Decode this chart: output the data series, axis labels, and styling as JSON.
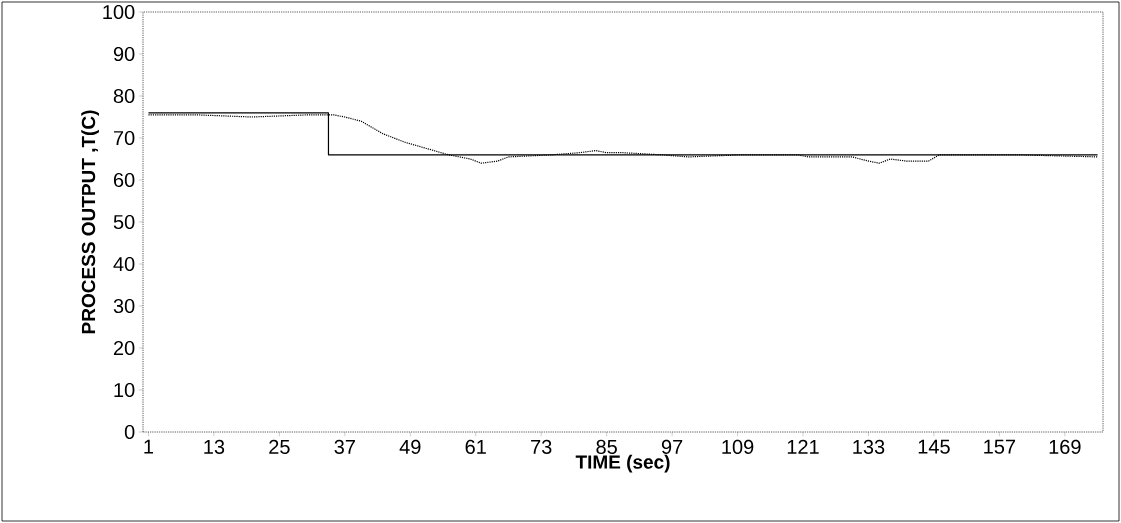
{
  "chart_data": {
    "type": "line",
    "xlabel": "TIME (sec)",
    "ylabel": "PROCESS OUTPUT ,T(C)",
    "xlim": [
      0,
      176
    ],
    "ylim": [
      0,
      100
    ],
    "xticks": [
      1,
      13,
      25,
      37,
      49,
      61,
      73,
      85,
      97,
      109,
      121,
      133,
      145,
      157,
      169
    ],
    "yticks": [
      0,
      10,
      20,
      30,
      40,
      50,
      60,
      70,
      80,
      90,
      100
    ],
    "grid": false,
    "marker": "none",
    "series": [
      {
        "type": "step",
        "color": "#000000",
        "line_style": "solid",
        "x": [
          1,
          34,
          175
        ],
        "values": [
          76,
          66,
          66
        ]
      },
      {
        "color": "#000000",
        "line_style": "dotted",
        "x": [
          1,
          10,
          20,
          30,
          35,
          37,
          40,
          44,
          48,
          52,
          56,
          58,
          60,
          62,
          65,
          67,
          75,
          80,
          83,
          85,
          88,
          95,
          100,
          110,
          115,
          120,
          122,
          130,
          133,
          135,
          137,
          140,
          144,
          146,
          160,
          175
        ],
        "values": [
          75.5,
          75.5,
          75,
          75.5,
          75.5,
          75,
          74,
          71,
          69,
          67.5,
          66,
          65.5,
          65,
          64,
          64.5,
          65.5,
          66,
          66.5,
          67,
          66.5,
          66.5,
          66,
          65.5,
          66,
          66,
          66,
          65.5,
          65.5,
          64.5,
          64,
          65,
          64.5,
          64.5,
          66,
          66,
          65.5
        ]
      }
    ]
  }
}
